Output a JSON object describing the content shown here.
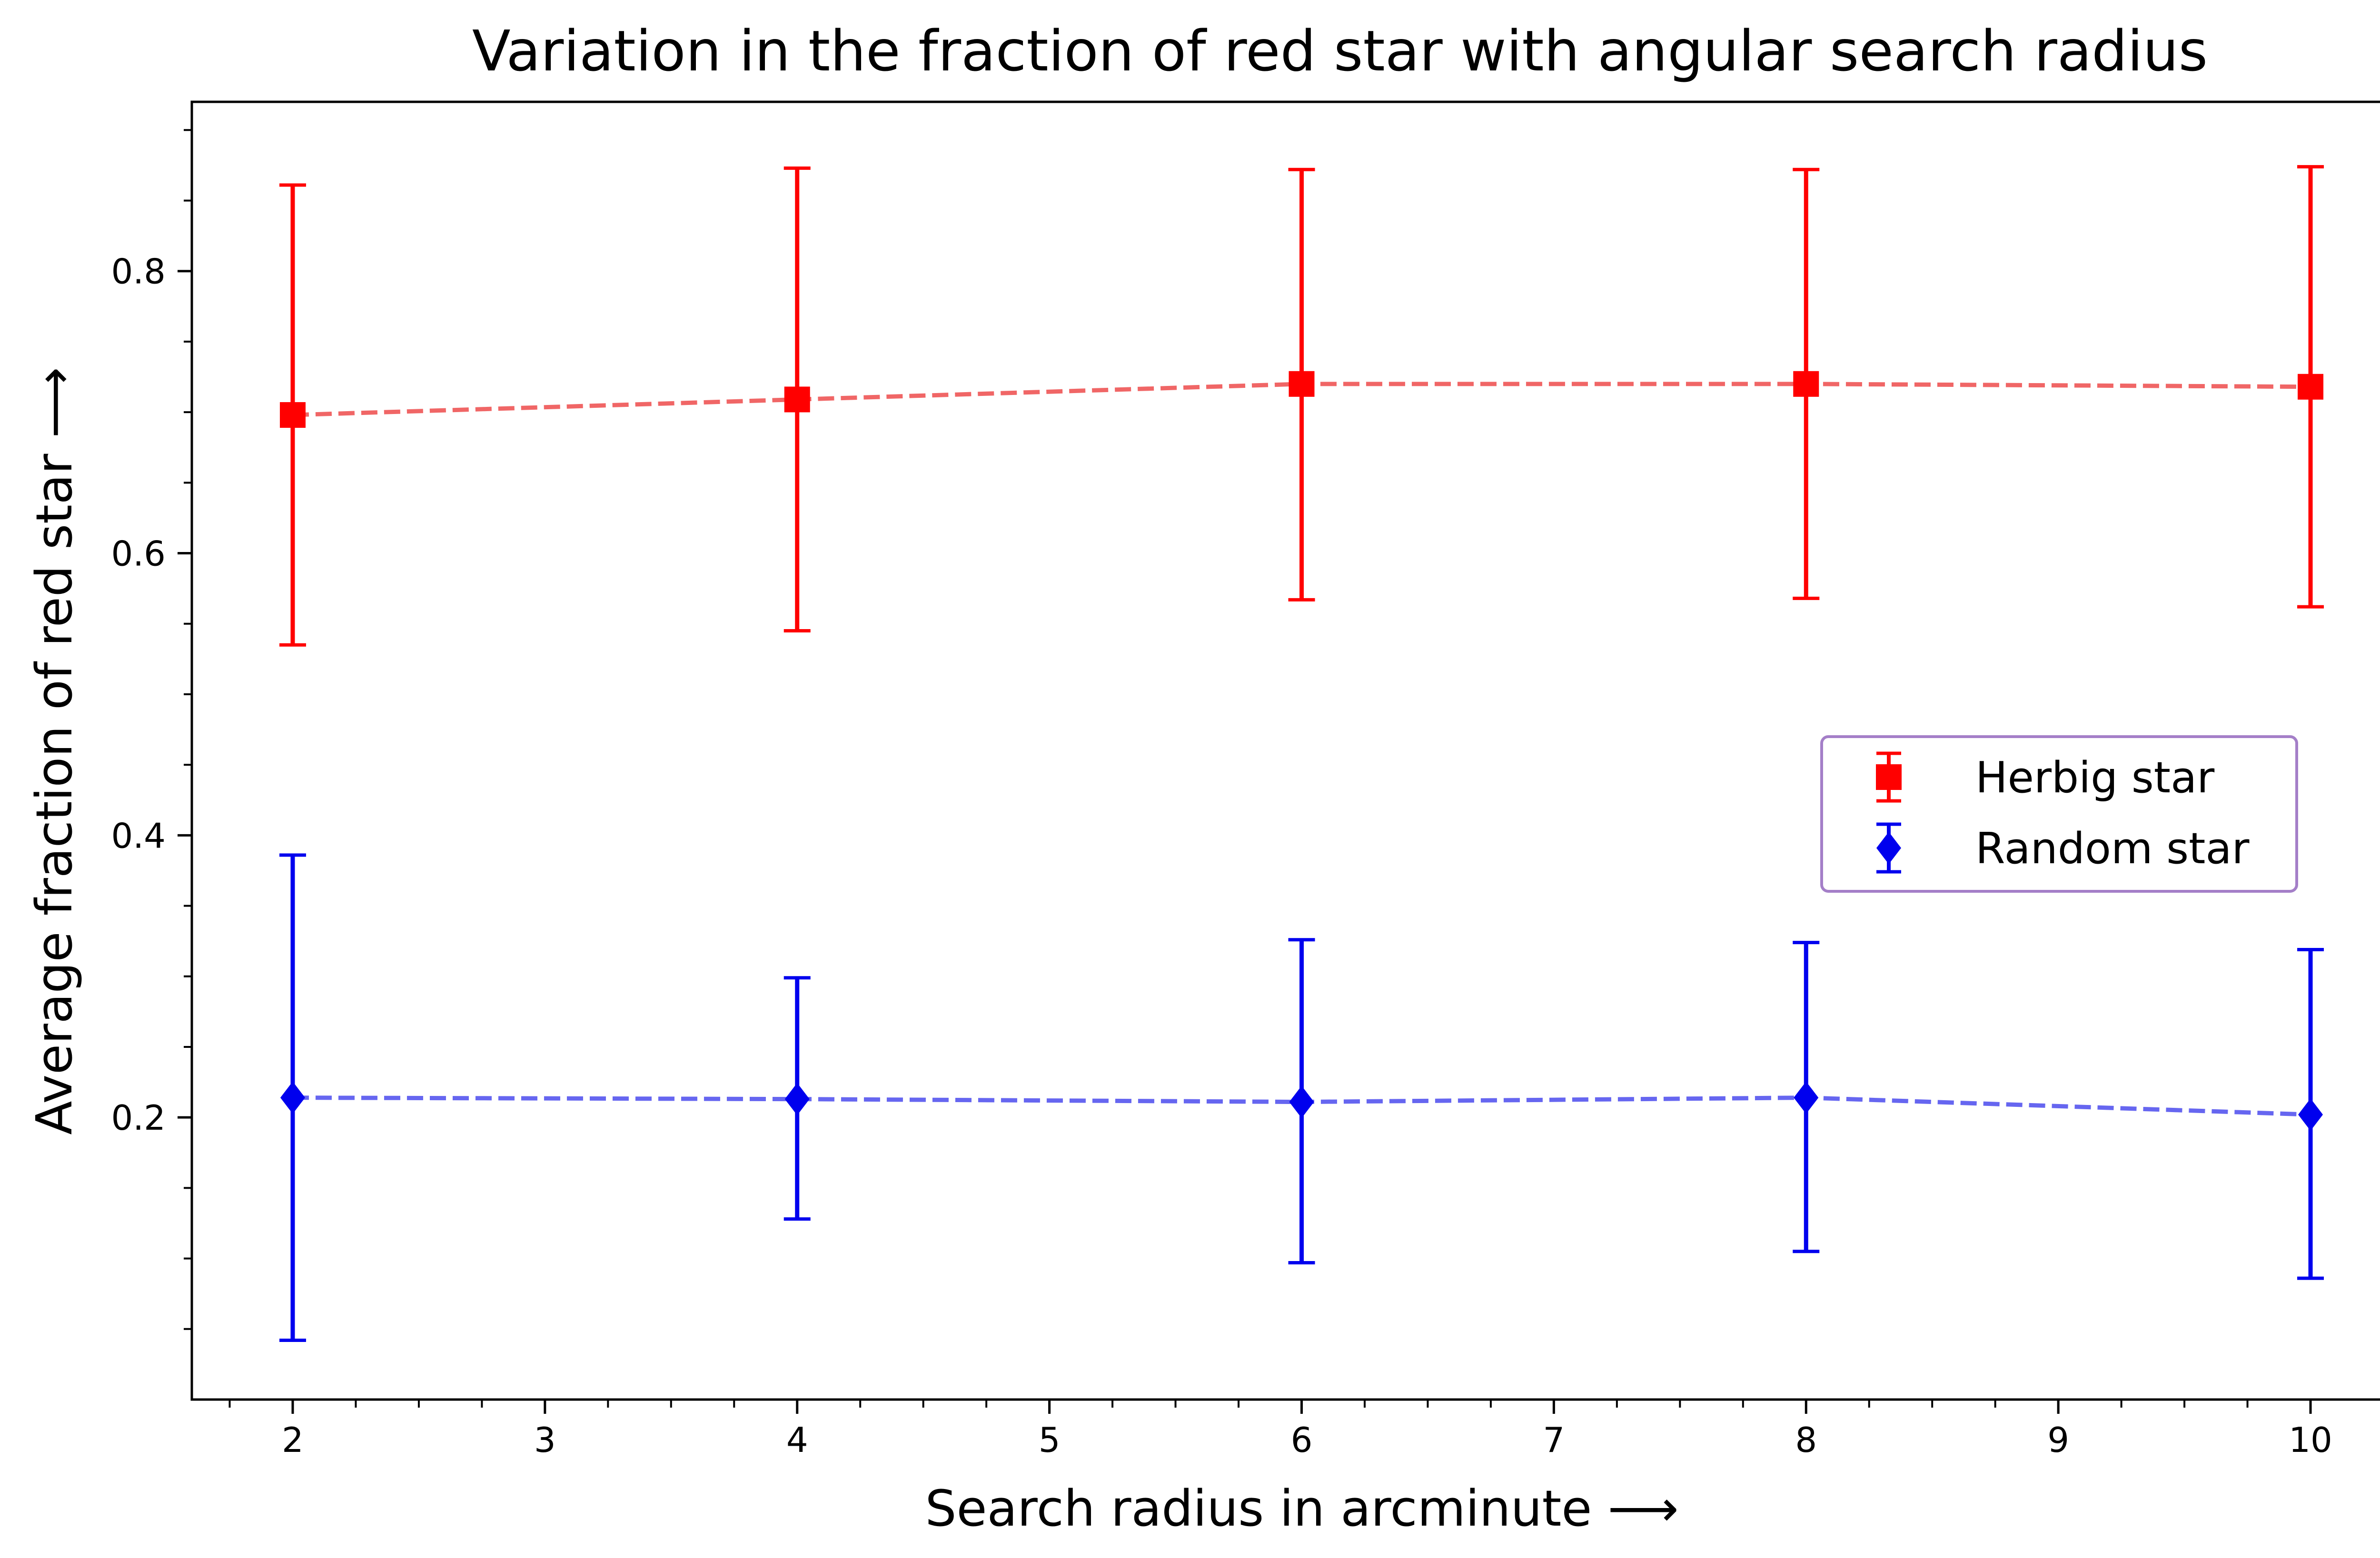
{
  "chart_data": {
    "type": "scatter",
    "title": "Variation in the fraction of red star with angular search radius",
    "xlabel": "Search radius in arcminute  ⟶",
    "ylabel": "Average fraction of red star  ⟶",
    "xlim": [
      1.6,
      10.4
    ],
    "ylim": [
      0.0,
      0.92
    ],
    "xticks": [
      "2",
      "3",
      "4",
      "5",
      "6",
      "7",
      "8",
      "9",
      "10"
    ],
    "yticks": [
      "0.2",
      "0.4",
      "0.6",
      "0.8"
    ],
    "grid": false,
    "legend": {
      "position": "center-right"
    },
    "series": [
      {
        "name": "Herbig star",
        "marker": "square",
        "color": "#ff0000",
        "line_color": "#f06666",
        "line_style": "dashed",
        "x": [
          2,
          4,
          6,
          8,
          10
        ],
        "y": [
          0.698,
          0.709,
          0.72,
          0.72,
          0.718
        ],
        "yerr_low": [
          0.535,
          0.545,
          0.567,
          0.568,
          0.562
        ],
        "yerr_high": [
          0.861,
          0.873,
          0.872,
          0.872,
          0.874
        ]
      },
      {
        "name": "Random star",
        "marker": "diamond",
        "color": "#0000ee",
        "line_color": "#6666f0",
        "line_style": "dashed",
        "x": [
          2,
          4,
          6,
          8,
          10
        ],
        "y": [
          0.214,
          0.213,
          0.211,
          0.214,
          0.202
        ],
        "yerr_low": [
          0.042,
          0.128,
          0.097,
          0.105,
          0.086
        ],
        "yerr_high": [
          0.386,
          0.299,
          0.326,
          0.324,
          0.319
        ]
      }
    ]
  }
}
